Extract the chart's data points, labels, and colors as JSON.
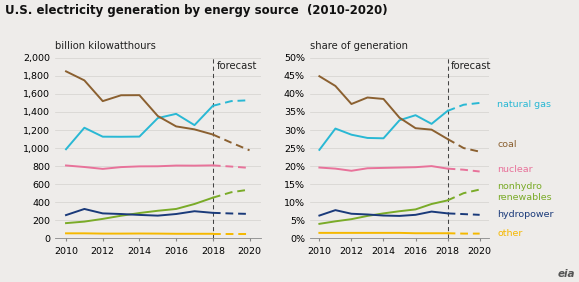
{
  "title": "U.S. electricity generation by energy source  (2010-2020)",
  "ylabel_left": "billion kilowatthours",
  "ylabel_right": "share of generation",
  "forecast_label": "forecast",
  "years_historical": [
    2010,
    2011,
    2012,
    2013,
    2014,
    2015,
    2016,
    2017,
    2018
  ],
  "years_forecast": [
    2018,
    2019,
    2020
  ],
  "forecast_year": 2018,
  "left": {
    "natural_gas": [
      987,
      1225,
      1126,
      1125,
      1127,
      1332,
      1379,
      1254,
      1468
    ],
    "natural_gas_fc": [
      1468,
      1520,
      1530
    ],
    "coal": [
      1850,
      1750,
      1520,
      1585,
      1586,
      1355,
      1240,
      1207,
      1150
    ],
    "coal_fc": [
      1150,
      1060,
      975
    ],
    "nuclear": [
      807,
      790,
      769,
      789,
      797,
      798,
      806,
      805,
      808
    ],
    "nuclear_fc": [
      808,
      795,
      780
    ],
    "nonhydro": [
      168,
      185,
      215,
      250,
      280,
      305,
      325,
      380,
      450
    ],
    "nonhydro_fc": [
      450,
      510,
      540
    ],
    "hydropower": [
      257,
      325,
      276,
      269,
      259,
      251,
      269,
      300,
      282
    ],
    "hydropower_fc": [
      282,
      275,
      270
    ],
    "other": [
      55,
      55,
      52,
      52,
      53,
      52,
      50,
      50,
      50
    ],
    "other_fc": [
      50,
      50,
      50
    ],
    "ylim": [
      0,
      2000
    ],
    "yticks": [
      0,
      200,
      400,
      600,
      800,
      1000,
      1200,
      1400,
      1600,
      1800,
      2000
    ]
  },
  "right": {
    "natural_gas": [
      24.5,
      30.4,
      28.7,
      27.8,
      27.7,
      32.7,
      34.1,
      31.7,
      35.3
    ],
    "natural_gas_fc": [
      35.3,
      37.0,
      37.5
    ],
    "coal": [
      44.9,
      42.2,
      37.2,
      39.0,
      38.6,
      33.4,
      30.5,
      30.1,
      27.5
    ],
    "coal_fc": [
      27.5,
      25.0,
      24.0
    ],
    "nuclear": [
      19.6,
      19.3,
      18.7,
      19.4,
      19.5,
      19.6,
      19.7,
      20.0,
      19.3
    ],
    "nuclear_fc": [
      19.3,
      19.0,
      18.5
    ],
    "nonhydro": [
      4.0,
      4.7,
      5.3,
      6.2,
      6.9,
      7.5,
      8.0,
      9.5,
      10.5
    ],
    "nonhydro_fc": [
      10.5,
      12.5,
      13.5
    ],
    "hydropower": [
      6.3,
      7.8,
      6.8,
      6.6,
      6.3,
      6.2,
      6.5,
      7.4,
      6.9
    ],
    "hydropower_fc": [
      6.9,
      6.7,
      6.5
    ],
    "other": [
      1.5,
      1.5,
      1.5,
      1.5,
      1.5,
      1.5,
      1.4,
      1.4,
      1.4
    ],
    "other_fc": [
      1.4,
      1.3,
      1.3
    ],
    "ylim": [
      0,
      50
    ],
    "yticks": [
      0,
      5,
      10,
      15,
      20,
      25,
      30,
      35,
      40,
      45,
      50
    ]
  },
  "colors": {
    "natural_gas": "#29b8d4",
    "coal": "#8B6030",
    "nuclear": "#e8729a",
    "nonhydro": "#7aab28",
    "hydropower": "#1a3a7a",
    "other": "#f5b800"
  },
  "background_color": "#eeecea",
  "grid_color": "#d4d2ce",
  "title_fontsize": 8.5,
  "sublabel_fontsize": 7.2,
  "tick_fontsize": 6.8,
  "legend_fontsize": 6.8
}
